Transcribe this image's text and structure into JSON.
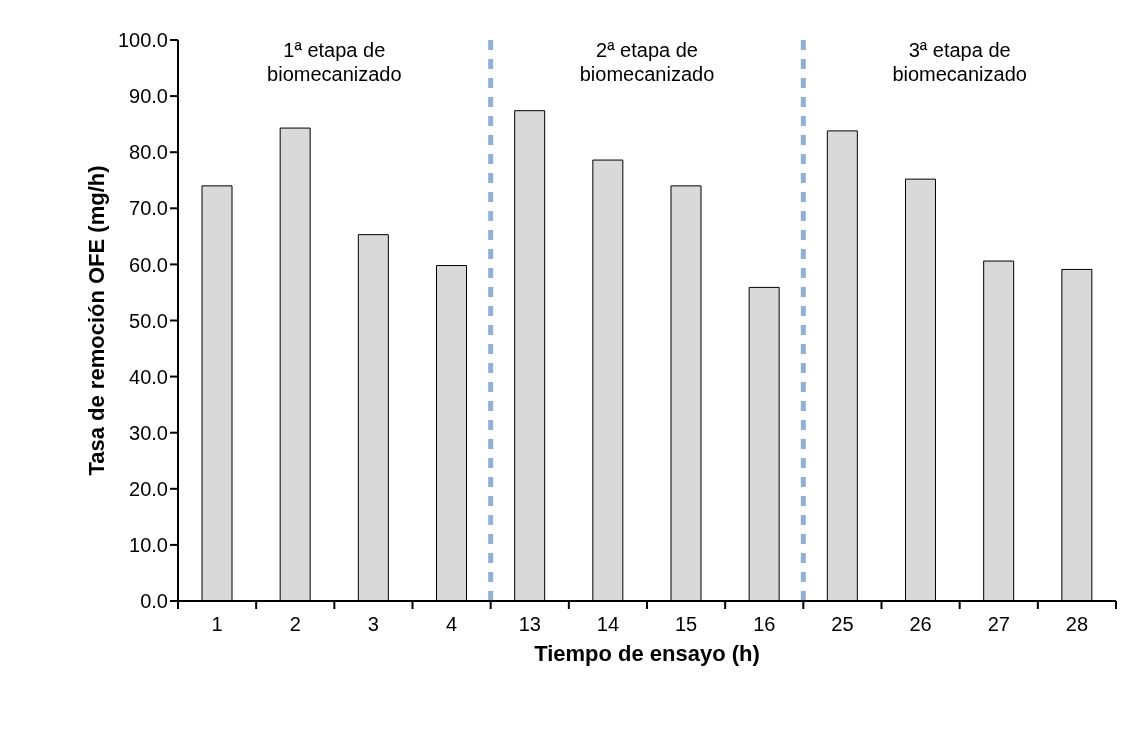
{
  "chart_data": {
    "type": "bar",
    "xlabel": "Tiempo de ensayo (h)",
    "ylabel": "Tasa de remoción OFE (mg/h)",
    "categories": [
      "1",
      "2",
      "3",
      "4",
      "13",
      "14",
      "15",
      "16",
      "25",
      "26",
      "27",
      "28"
    ],
    "values": [
      74.0,
      84.3,
      65.3,
      59.8,
      87.4,
      78.6,
      74.0,
      55.9,
      83.8,
      75.2,
      60.6,
      59.1
    ],
    "color": "#d9d9d9",
    "ylim": [
      0,
      100
    ],
    "yticks": [
      {
        "value": 0,
        "label": "0.0"
      },
      {
        "value": 10,
        "label": "10.0"
      },
      {
        "value": 20,
        "label": "20.0"
      },
      {
        "value": 30,
        "label": "30.0"
      },
      {
        "value": 40,
        "label": "40.0"
      },
      {
        "value": 50,
        "label": "50.0"
      },
      {
        "value": 60,
        "label": "60.0"
      },
      {
        "value": 70,
        "label": "70.0"
      },
      {
        "value": 80,
        "label": "80.0"
      },
      {
        "value": 90,
        "label": "90.0"
      },
      {
        "value": 100,
        "label": "100.0"
      }
    ],
    "annotations": [
      "1ª etapa de biomecanizado",
      "2ª etapa de biomecanizado",
      "3ª etapa de biomecanizado"
    ],
    "grid": false,
    "legend": false
  }
}
